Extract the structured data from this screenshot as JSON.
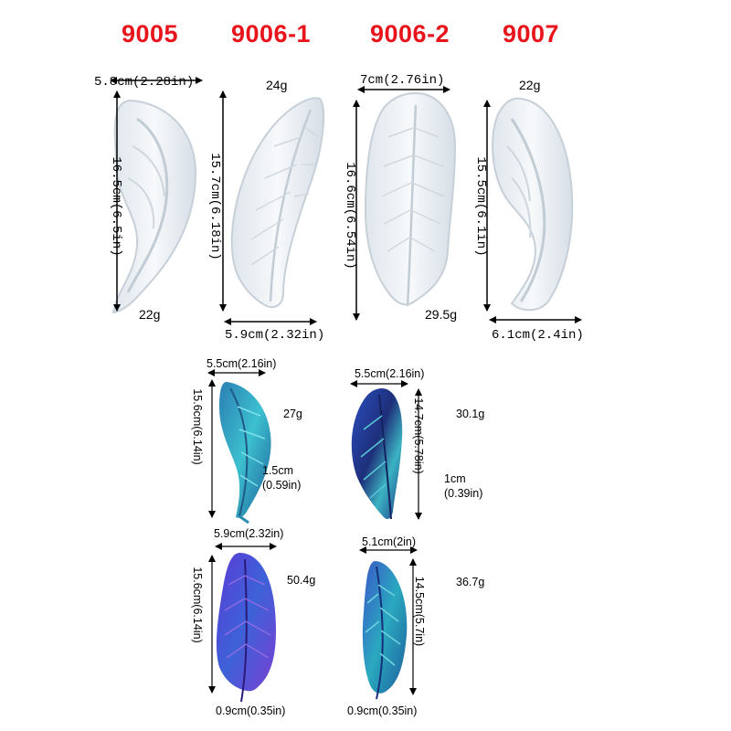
{
  "colors": {
    "code_red": "#e8141c",
    "mold_white": "#eef2f5",
    "mold_shadow": "#c9d2da",
    "teal": "#2fb3c4",
    "blue": "#2d5fc8",
    "purple": "#6a3fd0"
  },
  "molds": [
    {
      "code": "9005",
      "width": "5.8cm(2.28in)",
      "height": "16.5cm(6.5in)",
      "weight": "22g"
    },
    {
      "code": "9006-1",
      "width": "5.9cm(2.32in)",
      "height": "15.7cm(6.18in)",
      "weight": "24g"
    },
    {
      "code": "9006-2",
      "width": "7cm(2.76in)",
      "height": "16.6cm(6.54in)",
      "weight": "29.5g"
    },
    {
      "code": "9007",
      "width": "6.1cm(2.4in)",
      "height": "15.5cm(6.1in)",
      "weight": "22g"
    }
  ],
  "finished": [
    {
      "width": "5.5cm(2.16in)",
      "height": "15.6cm(6.14in)",
      "weight": "27g",
      "thickness_cm": "1.5cm",
      "thickness_in": "(0.59in)"
    },
    {
      "width": "5.5cm(2.16in)",
      "height": "14.7cm(5.78in)",
      "weight": "30.1g",
      "thickness_cm": "1cm",
      "thickness_in": "(0.39in)"
    },
    {
      "width": "5.9cm(2.32in)",
      "height": "15.6cm(6.14in)",
      "weight": "50.4g",
      "thickness": "0.9cm(0.35in)"
    },
    {
      "width": "5.1cm(2in)",
      "height": "14.5cm(5.7in)",
      "weight": "36.7g",
      "thickness": "0.9cm(0.35in)"
    }
  ]
}
